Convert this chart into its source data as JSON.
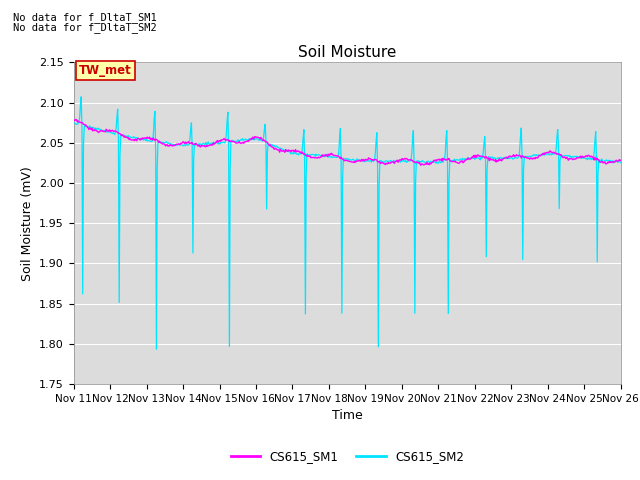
{
  "title": "Soil Moisture",
  "xlabel": "Time",
  "ylabel": "Soil Moisture (mV)",
  "ylim": [
    1.75,
    2.15
  ],
  "background_color": "#dcdcdc",
  "note_line1": "No data for f_DltaT_SM1",
  "note_line2": "No data for f_DltaT_SM2",
  "tw_met_label": "TW_met",
  "tw_met_bg": "#ffffaa",
  "tw_met_border": "#cc0000",
  "tw_met_text_color": "#cc0000",
  "legend_entries": [
    "CS615_SM1",
    "CS615_SM2"
  ],
  "legend_colors": [
    "#ff00ff",
    "#00e5ff"
  ],
  "x_tick_labels": [
    "Nov 11",
    "Nov 12",
    "Nov 13",
    "Nov 14",
    "Nov 15",
    "Nov 16",
    "Nov 17",
    "Nov 18",
    "Nov 19",
    "Nov 20",
    "Nov 21",
    "Nov 22",
    "Nov 23",
    "Nov 24",
    "Nov 25",
    "Nov 26"
  ],
  "sm1_base": [
    2.075,
    2.063,
    2.053,
    2.047,
    2.05,
    2.055,
    2.037,
    2.033,
    2.027,
    2.027,
    2.026,
    2.031,
    2.031,
    2.036,
    2.031,
    2.026
  ],
  "spike_day_offsets": [
    0.25,
    1.25,
    2.28,
    3.28,
    4.28,
    5.3,
    6.35,
    7.35,
    8.35,
    9.35,
    10.28,
    11.32,
    12.32,
    13.32,
    14.35
  ],
  "spike_peaks_up": [
    2.108,
    2.092,
    2.088,
    2.075,
    2.088,
    2.072,
    2.065,
    2.068,
    2.062,
    2.065,
    2.065,
    2.058,
    2.068,
    2.068,
    2.062
  ],
  "spike_bottoms": [
    1.863,
    1.851,
    1.793,
    1.913,
    1.797,
    1.968,
    1.838,
    1.838,
    1.797,
    1.838,
    1.838,
    1.908,
    1.905,
    1.968,
    1.902
  ]
}
